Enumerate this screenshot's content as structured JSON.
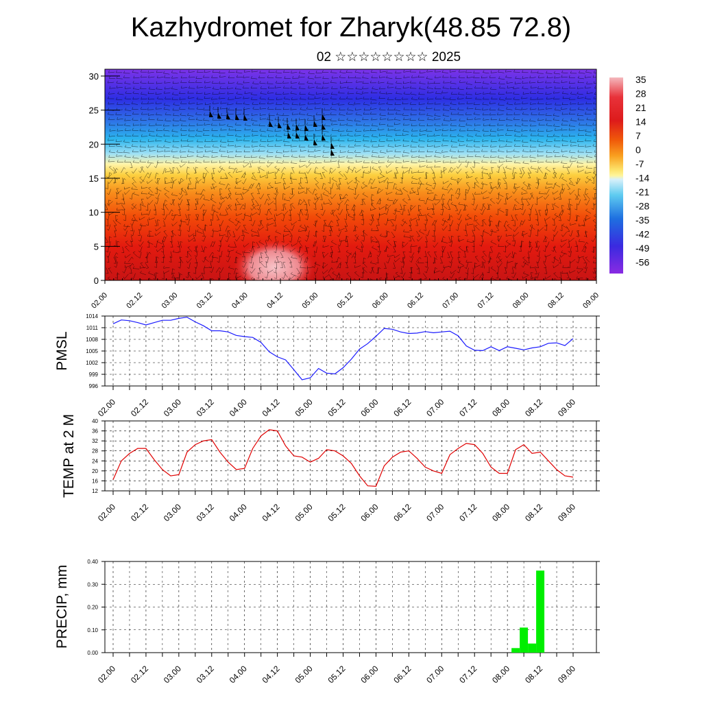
{
  "header": {
    "title": "Kazhydromet for Zharyk(48.85 72.8)",
    "subtitle": "02 ☆☆☆☆☆☆☆☆ 2025"
  },
  "colors": {
    "pmsl_line": "#1a1aff",
    "temp_line": "#e00000",
    "precip_bar": "#00ee00",
    "colorbar_stops": [
      "#f4b8bd",
      "#dd1b1b",
      "#f05a0a",
      "#f9a020",
      "#fff59a",
      "#5ecbf0",
      "#1e6fe0",
      "#3a2ae0",
      "#8a2be2"
    ]
  },
  "chart_data": [
    {
      "type": "heatmap",
      "description_panel": "cross-section",
      "x_tick_labels": [
        "02.00",
        "02.12",
        "03.00",
        "03.12",
        "04.00",
        "04.12",
        "05.00",
        "05.12",
        "06.00",
        "06.12",
        "07.00",
        "07.12",
        "08.00",
        "08.12",
        "09.00"
      ],
      "y_tick_labels": [
        "0",
        "5",
        "10",
        "15",
        "20",
        "25",
        "30"
      ],
      "ylim": [
        0,
        31
      ],
      "colorbar_labels": [
        "35",
        "28",
        "21",
        "14",
        "7",
        "0",
        "-7",
        "-14",
        "-21",
        "-28",
        "-35",
        "-42",
        "-49",
        "-56"
      ],
      "wind_barbs": true
    },
    {
      "type": "line",
      "ylabel": "PMSL",
      "ylim": [
        996,
        1014
      ],
      "y_tick_labels": [
        "1014",
        "1011",
        "1008",
        "1005",
        "1002",
        "999",
        "996"
      ],
      "x_tick_labels": [
        "02.00",
        "02.12",
        "03.00",
        "03.12",
        "04.00",
        "04.12",
        "05.00",
        "05.12",
        "06.00",
        "06.12",
        "07.00",
        "07.12",
        "08.00",
        "08.12",
        "09.00"
      ],
      "x": [
        0,
        3,
        6,
        9,
        12,
        15,
        18,
        21,
        24,
        27,
        30,
        33,
        36,
        39,
        42,
        45,
        48,
        51,
        54,
        57,
        60,
        63,
        66,
        69,
        72,
        75,
        78,
        81,
        84,
        87,
        90,
        93,
        96,
        99,
        102,
        105,
        108,
        111,
        114,
        117,
        120,
        123,
        126,
        129,
        132,
        135,
        138,
        141,
        144,
        147,
        150,
        153,
        156,
        159,
        162,
        165,
        168
      ],
      "values": [
        1012,
        1013,
        1012.8,
        1012.3,
        1011.7,
        1012.3,
        1012.9,
        1012.9,
        1013.4,
        1013.7,
        1012.5,
        1011.5,
        1010.2,
        1010.2,
        1009.9,
        1009,
        1008.7,
        1008.5,
        1007.2,
        1004.8,
        1003.5,
        1002.7,
        1000.2,
        997.6,
        998.1,
        1000.5,
        999.3,
        999.1,
        1000.7,
        1002.9,
        1005.5,
        1006.9,
        1008.8,
        1010.8,
        1010.6,
        1009.9,
        1009.5,
        1009.6,
        1010,
        1009.7,
        1009.9,
        1010.1,
        1008.9,
        1006.3,
        1005.2,
        1005.1,
        1006.1,
        1005.1,
        1006.1,
        1005.7,
        1005.3,
        1005.8,
        1006.1,
        1007,
        1007.1,
        1006.4,
        1008.2
      ]
    },
    {
      "type": "line",
      "ylabel": "TEMP at 2 M",
      "ylim": [
        12,
        40
      ],
      "y_tick_labels": [
        "40",
        "36",
        "32",
        "28",
        "24",
        "20",
        "16",
        "12"
      ],
      "x_tick_labels": [
        "02.00",
        "02.12",
        "03.00",
        "03.12",
        "04.00",
        "04.12",
        "05.00",
        "05.12",
        "06.00",
        "06.12",
        "07.00",
        "07.12",
        "08.00",
        "08.12",
        "09.00"
      ],
      "x": [
        0,
        3,
        6,
        9,
        12,
        15,
        18,
        21,
        24,
        27,
        30,
        33,
        36,
        39,
        42,
        45,
        48,
        51,
        54,
        57,
        60,
        63,
        66,
        69,
        72,
        75,
        78,
        81,
        84,
        87,
        90,
        93,
        96,
        99,
        102,
        105,
        108,
        111,
        114,
        117,
        120,
        123,
        126,
        129,
        132,
        135,
        138,
        141,
        144,
        147,
        150,
        153,
        156,
        159,
        162,
        165,
        168
      ],
      "values": [
        16.5,
        24,
        27,
        29,
        29,
        24.5,
        20.5,
        18,
        18.5,
        27.5,
        30.5,
        32,
        32.5,
        27.5,
        23.5,
        20.5,
        21,
        29,
        34,
        36.5,
        36,
        30,
        26,
        25.5,
        23.5,
        25,
        28.5,
        28,
        26,
        23,
        18,
        14,
        13.8,
        22,
        25.5,
        27.5,
        28,
        25,
        21.5,
        20,
        19,
        26.5,
        29,
        31,
        30.5,
        27,
        21.5,
        19,
        19,
        28.5,
        30.5,
        27,
        27.5,
        24,
        20.5,
        18,
        17.5
      ]
    },
    {
      "type": "bar",
      "ylabel": "PRECIP, mm",
      "ylim": [
        0,
        0.4
      ],
      "y_tick_labels": [
        "0.40",
        "0.30",
        "0.20",
        "0.10",
        "0.00"
      ],
      "x_tick_labels": [
        "02.00",
        "02.12",
        "03.00",
        "03.12",
        "04.00",
        "04.12",
        "05.00",
        "05.12",
        "06.00",
        "06.12",
        "07.00",
        "07.12",
        "08.00",
        "08.12",
        "09.00"
      ],
      "x": [
        147,
        150,
        153,
        156
      ],
      "values": [
        0.02,
        0.11,
        0.04,
        0.36
      ]
    }
  ]
}
